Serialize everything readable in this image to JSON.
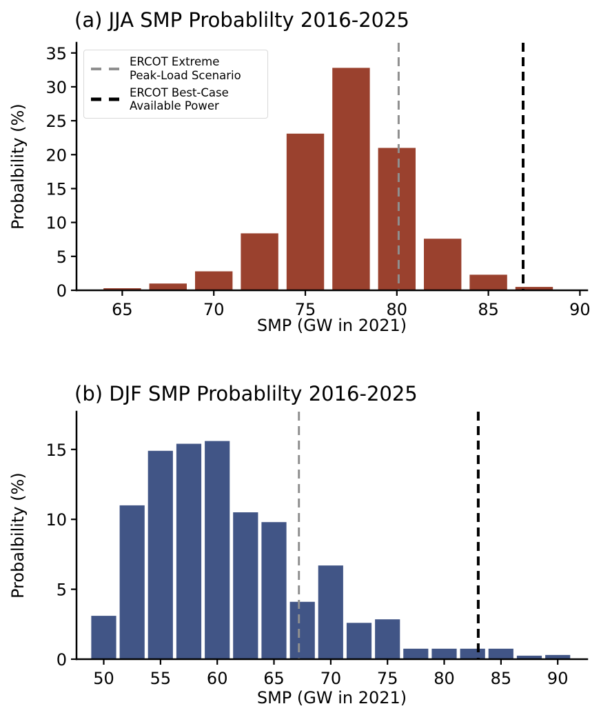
{
  "figure": {
    "background_color": "#ffffff",
    "text_color": "#000000"
  },
  "chart_data": [
    {
      "type": "bar",
      "panel": "a",
      "title": "(a) JJA SMP Probablilty 2016-2025",
      "xlabel": "SMP (GW in 2021)",
      "ylabel": "Probalbility (%)",
      "bar_color": "#9A412E",
      "bin_width": 2.5,
      "rwidth": 0.82,
      "categories": [
        65,
        67.5,
        70,
        72.5,
        75,
        77.5,
        80,
        82.5,
        85,
        87.5
      ],
      "values": [
        0.3,
        1.0,
        2.8,
        8.4,
        23.1,
        32.8,
        21.0,
        7.6,
        2.3,
        0.5
      ],
      "xticks": [
        65,
        70,
        75,
        80,
        85,
        90
      ],
      "yticks": [
        0,
        5,
        10,
        15,
        20,
        25,
        30,
        35
      ],
      "xlim": [
        62.5,
        90.4
      ],
      "ylim": [
        0,
        36.5
      ],
      "grid": false,
      "vlines": [
        {
          "name": "extreme-peak-load-line",
          "x": 80.1,
          "color": "#8f8f8f",
          "stroke_width": 3
        },
        {
          "name": "best-case-available-power-line",
          "x": 86.9,
          "color": "#000000",
          "stroke_width": 4
        }
      ],
      "legend": {
        "position": "upper-left",
        "entries": [
          {
            "label_lines": [
              "ERCOT Extreme",
              "Peak-Load Scenario"
            ],
            "color": "#8f8f8f",
            "stroke_width": 4
          },
          {
            "label_lines": [
              "ERCOT Best-Case",
              "Available Power"
            ],
            "color": "#000000",
            "stroke_width": 5
          }
        ]
      }
    },
    {
      "type": "bar",
      "panel": "b",
      "title": "(b) DJF SMP Probablilty 2016-2025",
      "xlabel": "SMP (GW in 2021)",
      "ylabel": "Probalbility (%)",
      "bar_color": "#415586",
      "bin_width": 2.5,
      "rwidth": 0.88,
      "categories": [
        50,
        52.5,
        55,
        57.5,
        60,
        62.5,
        65,
        67.5,
        70,
        72.5,
        75,
        77.5,
        80,
        82.5,
        85,
        87.5,
        90
      ],
      "values": [
        3.1,
        11.0,
        14.9,
        15.4,
        15.6,
        10.5,
        9.8,
        4.1,
        6.7,
        2.6,
        2.85,
        0.75,
        0.75,
        0.75,
        0.75,
        0.25,
        0.3
      ],
      "xticks": [
        50,
        55,
        60,
        65,
        70,
        75,
        80,
        85,
        90
      ],
      "yticks": [
        0,
        5,
        10,
        15
      ],
      "xlim": [
        47.6,
        92.6
      ],
      "ylim": [
        0,
        17.7
      ],
      "grid": false,
      "vlines": [
        {
          "name": "extreme-peak-load-line",
          "x": 67.2,
          "color": "#8f8f8f",
          "stroke_width": 3
        },
        {
          "name": "best-case-available-power-line",
          "x": 83.0,
          "color": "#000000",
          "stroke_width": 4
        }
      ],
      "legend": {
        "position": "none",
        "entries": []
      }
    }
  ]
}
